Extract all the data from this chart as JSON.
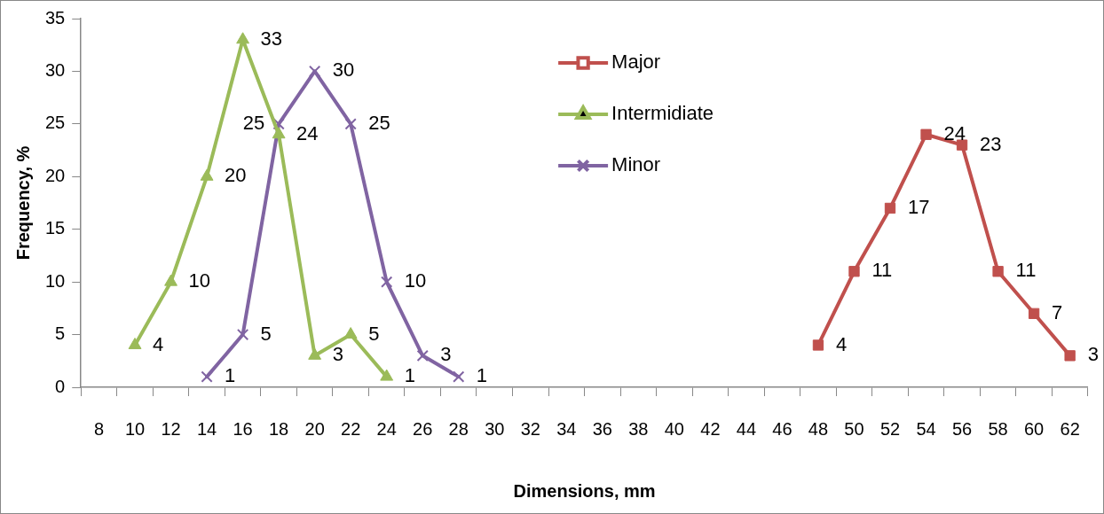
{
  "chart_data": {
    "type": "line",
    "xlabel": "Dimensions, mm",
    "ylabel": "Frequency, %",
    "categories": [
      "8",
      "10",
      "12",
      "14",
      "16",
      "18",
      "20",
      "22",
      "24",
      "26",
      "28",
      "30",
      "32",
      "34",
      "36",
      "38",
      "40",
      "42",
      "44",
      "46",
      "48",
      "50",
      "52",
      "54",
      "56",
      "58",
      "60",
      "62"
    ],
    "series": [
      {
        "name": "Major",
        "color": "#c0504d",
        "marker": "square",
        "values": [
          null,
          null,
          null,
          null,
          null,
          null,
          null,
          null,
          null,
          null,
          null,
          null,
          null,
          null,
          null,
          null,
          null,
          null,
          null,
          null,
          4,
          11,
          17,
          24,
          23,
          11,
          7,
          3
        ]
      },
      {
        "name": "Intermidiate",
        "color": "#9bbb59",
        "marker": "triangle",
        "values": [
          null,
          4,
          10,
          20,
          33,
          24,
          3,
          5,
          1,
          null,
          null,
          null,
          null,
          null,
          null,
          null,
          null,
          null,
          null,
          null,
          null,
          null,
          null,
          null,
          null,
          null,
          null,
          null
        ]
      },
      {
        "name": "Minor",
        "color": "#8064a2",
        "marker": "cross",
        "values": [
          null,
          null,
          null,
          1,
          5,
          25,
          30,
          25,
          10,
          3,
          1,
          null,
          null,
          null,
          null,
          null,
          null,
          null,
          null,
          null,
          null,
          null,
          null,
          null,
          null,
          null,
          null,
          null
        ]
      }
    ],
    "ylim": [
      0,
      35
    ],
    "yticks": [
      0,
      5,
      10,
      15,
      20,
      25,
      30,
      35
    ],
    "grid": false,
    "legend": "top",
    "data_labels": true
  }
}
